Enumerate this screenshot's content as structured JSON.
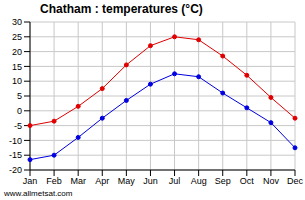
{
  "chart_data": {
    "type": "line",
    "title": "Chatham : temperatures (°C)",
    "annotation": "www.allmetsat.com",
    "categories": [
      "Jan",
      "Feb",
      "Mar",
      "Apr",
      "May",
      "Jun",
      "Jul",
      "Aug",
      "Sep",
      "Oct",
      "Nov",
      "Dec"
    ],
    "series": [
      {
        "color": "#e00000",
        "marker": "circle",
        "values": [
          -5,
          -3.5,
          1.5,
          7.5,
          15.5,
          22,
          25,
          24,
          18.5,
          12,
          4.5,
          -2.5
        ]
      },
      {
        "color": "#0000e0",
        "marker": "circle",
        "values": [
          -16.5,
          -15,
          -9,
          -2.5,
          3.5,
          9,
          12.5,
          11.5,
          6,
          1,
          -4,
          -12.5
        ]
      }
    ],
    "ylim": [
      -20,
      30
    ],
    "yticks": [
      -20,
      -15,
      -10,
      -5,
      0,
      5,
      10,
      15,
      20,
      25,
      30
    ],
    "grid": true
  }
}
